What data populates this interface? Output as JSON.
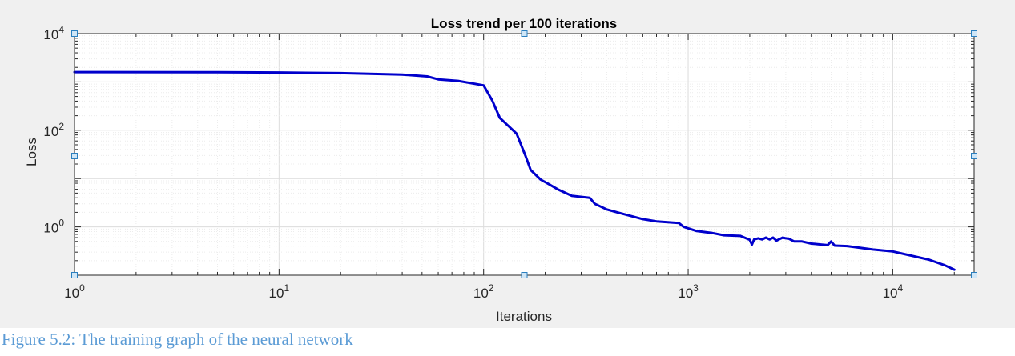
{
  "caption": "Figure 5.2: The training graph of the neural network",
  "chart_data": {
    "type": "line",
    "title": "Loss trend per 100 iterations",
    "xlabel": "Iterations",
    "ylabel": "Loss",
    "xscale": "log",
    "yscale": "log",
    "xlim": [
      1,
      25000
    ],
    "ylim": [
      0.1,
      10000
    ],
    "grid": "major and minor",
    "x_ticks": [
      {
        "base": "10",
        "exp": "0",
        "value": 1
      },
      {
        "base": "10",
        "exp": "1",
        "value": 10
      },
      {
        "base": "10",
        "exp": "2",
        "value": 100
      },
      {
        "base": "10",
        "exp": "3",
        "value": 1000
      },
      {
        "base": "10",
        "exp": "4",
        "value": 10000
      }
    ],
    "y_ticks": [
      {
        "base": "10",
        "exp": "0",
        "value": 1
      },
      {
        "base": "10",
        "exp": "2",
        "value": 100
      },
      {
        "base": "10",
        "exp": "4",
        "value": 10000
      }
    ],
    "series": [
      {
        "color": "#0000cc",
        "x": [
          1,
          5,
          10,
          20,
          40,
          53,
          60,
          75,
          100,
          110,
          120,
          145,
          160,
          170,
          190,
          210,
          230,
          270,
          330,
          350,
          400,
          450,
          600,
          700,
          900,
          950,
          1100,
          1300,
          1500,
          1800,
          2000,
          2050,
          2100,
          2200,
          2300,
          2400,
          2500,
          2600,
          2700,
          2800,
          2900,
          3000,
          3100,
          3300,
          3600,
          4000,
          4500,
          4800,
          5000,
          5100,
          5200,
          6000,
          8000,
          10000,
          12000,
          15000,
          18000,
          20000
        ],
        "y": [
          1600,
          1590,
          1570,
          1520,
          1420,
          1300,
          1130,
          1050,
          850,
          420,
          180,
          85,
          30,
          15,
          9.5,
          7.5,
          6.0,
          4.4,
          4.0,
          3.0,
          2.3,
          2.0,
          1.45,
          1.3,
          1.2,
          1.0,
          0.82,
          0.75,
          0.67,
          0.65,
          0.54,
          0.43,
          0.55,
          0.58,
          0.55,
          0.6,
          0.55,
          0.6,
          0.52,
          0.56,
          0.6,
          0.58,
          0.57,
          0.5,
          0.5,
          0.45,
          0.43,
          0.42,
          0.5,
          0.45,
          0.41,
          0.4,
          0.34,
          0.31,
          0.26,
          0.21,
          0.16,
          0.13
        ]
      }
    ]
  }
}
